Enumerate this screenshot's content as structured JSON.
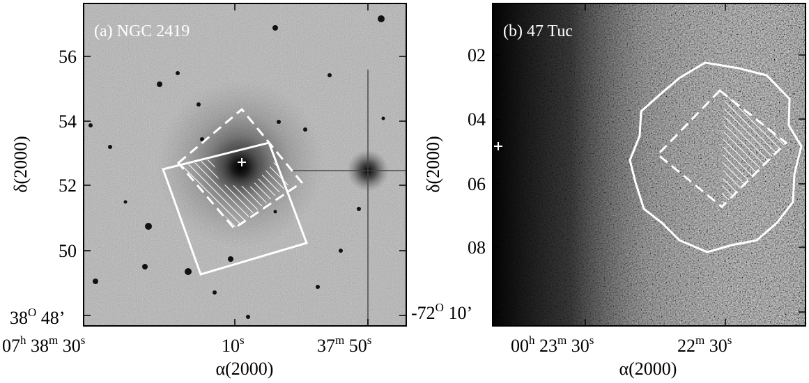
{
  "panel_a": {
    "label": "(a) NGC 2419",
    "ylabel": "δ(2000)",
    "xlabel": "α(2000)",
    "ytick_labels": [
      "56",
      "54",
      "52",
      "50"
    ],
    "ytick_origin": {
      "main": "38",
      "sup": "O",
      "tail": " 48’"
    },
    "xtick_origin": {
      "h": "07",
      "hsup": "h",
      "m": " 38",
      "msup": "m",
      "s": " 30",
      "ssup": "s"
    },
    "xtick_mid": {
      "s": "10",
      "ssup": "s"
    },
    "xtick_right": {
      "m": "37",
      "msup": "m",
      "s": " 50",
      "ssup": "s"
    }
  },
  "panel_b": {
    "label": "(b) 47 Tuc",
    "ylabel": "δ(2000)",
    "xlabel": "α(2000)",
    "ytick_labels": [
      "02",
      "04",
      "06",
      "08"
    ],
    "ytick_origin": {
      "main": "-72",
      "sup": "O",
      "tail": " 10’"
    },
    "xtick_left": {
      "h": "00",
      "hsup": "h",
      "m": " 23",
      "msup": "m",
      "s": " 30",
      "ssup": "s"
    },
    "xtick_right": {
      "m": "22",
      "msup": "m",
      "s": " 30",
      "ssup": "s"
    }
  },
  "colors": {
    "overlay": "#ffffff",
    "frame": "#000000",
    "background": "#ffffff"
  }
}
